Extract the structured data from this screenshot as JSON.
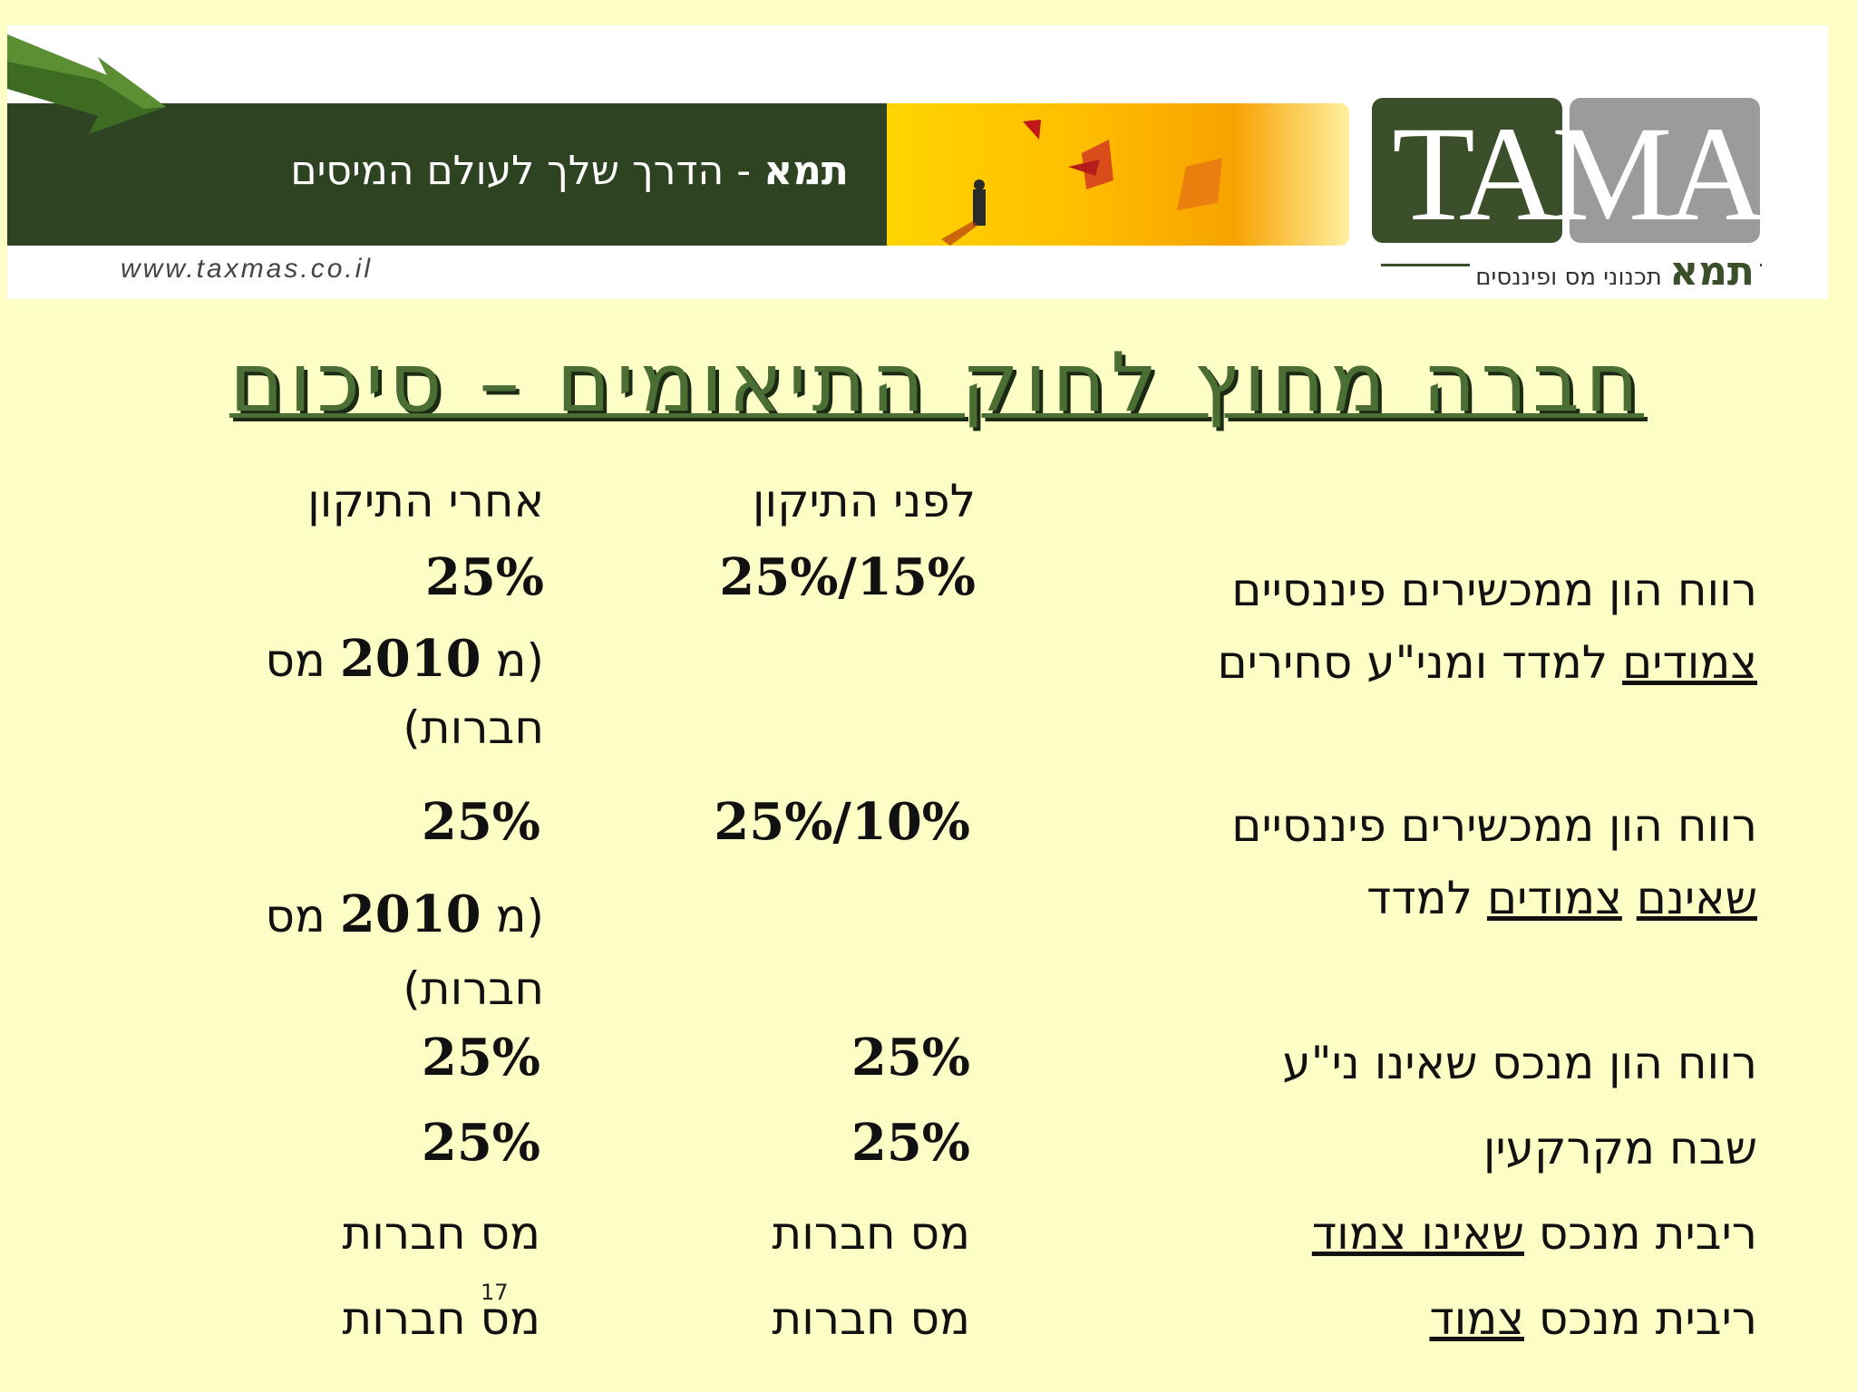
{
  "banner": {
    "tagline_brand": "תמא",
    "tagline_rest": " - הדרך שלך לעולם המיסים",
    "url": "www.taxmas.co.il",
    "logo_text": "TAMA",
    "logo_hebrew_brand": "תמא",
    "logo_hebrew_sub": "תכנוני מס ופיננסים",
    "colors": {
      "dark_green": "#2e4322",
      "logo_gray": "#9b9b9b",
      "photo_yellow": "#ffc400"
    }
  },
  "slide": {
    "title": "חברה מחוץ לחוק התיאומים – סיכום",
    "page_number": "17"
  },
  "table": {
    "header_before": "לפני התיקון",
    "header_after": "אחרי התיקון",
    "rows": [
      {
        "label_1": "רווח הון ממכשירים פיננסיים",
        "label_2a": "צמודים",
        "label_2b": " למדד ומני\"ע סחירים",
        "before": "25%/15%",
        "after": "25%",
        "after_note_a": "(מ ",
        "after_note_year": "2010",
        "after_note_b": " מס",
        "after_note_c": "חברות)"
      },
      {
        "label_1": "רווח הון ממכשירים פיננסיים",
        "label_2a": "שאינם",
        "label_2b": " ",
        "label_2c": "צמודים",
        "label_2d": " למדד",
        "before": "25%/10%",
        "after": "25%",
        "after_note_a": "(מ ",
        "after_note_year": "2010",
        "after_note_b": " מס",
        "after_note_c": "חברות)"
      },
      {
        "label": "רווח הון מנכס שאינו ני\"ע",
        "before": "25%",
        "after": "25%"
      },
      {
        "label": "שבח מקרקעין",
        "before": "25%",
        "after": "25%"
      },
      {
        "label_a": "ריבית מנכס ",
        "label_b": "שאינו צמוד",
        "before": "מס חברות",
        "after": "מס חברות"
      },
      {
        "label_a": "ריבית מנכס ",
        "label_b": "צמוד",
        "before": "מס חברות",
        "after": "מס חברות"
      }
    ]
  }
}
